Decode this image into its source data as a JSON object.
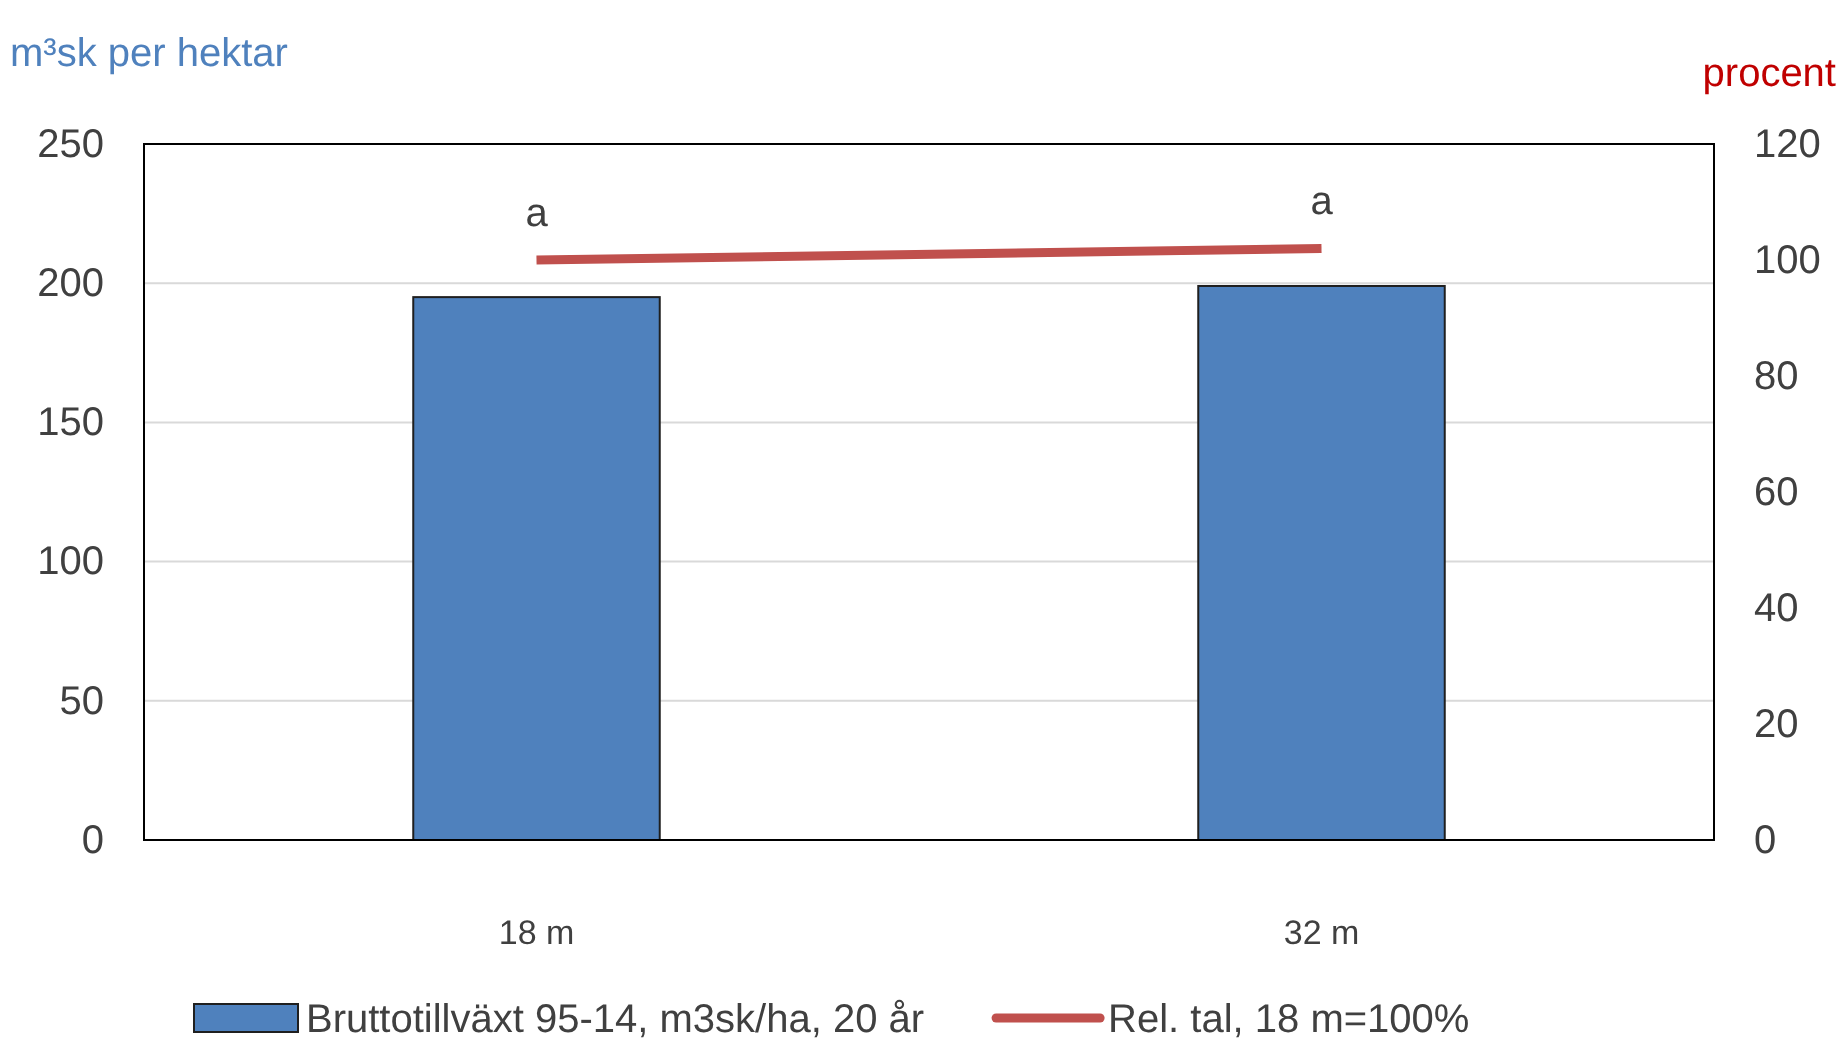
{
  "chart_data": {
    "type": "bar",
    "ylabel": "m³sk per hektar",
    "y2label": "procent",
    "categories": [
      "18 m",
      "32 m"
    ],
    "series": [
      {
        "name": "Bruttotillväxt 95-14, m3sk/ha, 20 år",
        "color": "#4f81bd",
        "values": [
          195,
          199
        ]
      },
      {
        "name": "Rel. tal, 18 m=100%",
        "type": "line",
        "axis": "y2",
        "color": "#c0504d",
        "values": [
          100,
          102
        ],
        "marker": "none"
      }
    ],
    "ylim": [
      0,
      250
    ],
    "yticks": [
      0,
      50,
      100,
      150,
      200,
      250
    ],
    "y2lim": [
      0,
      120
    ],
    "y2ticks": [
      0,
      20,
      40,
      60,
      80,
      100,
      120
    ],
    "annotations": [
      "a",
      "a"
    ],
    "grid": "y",
    "legend": "bottom"
  }
}
